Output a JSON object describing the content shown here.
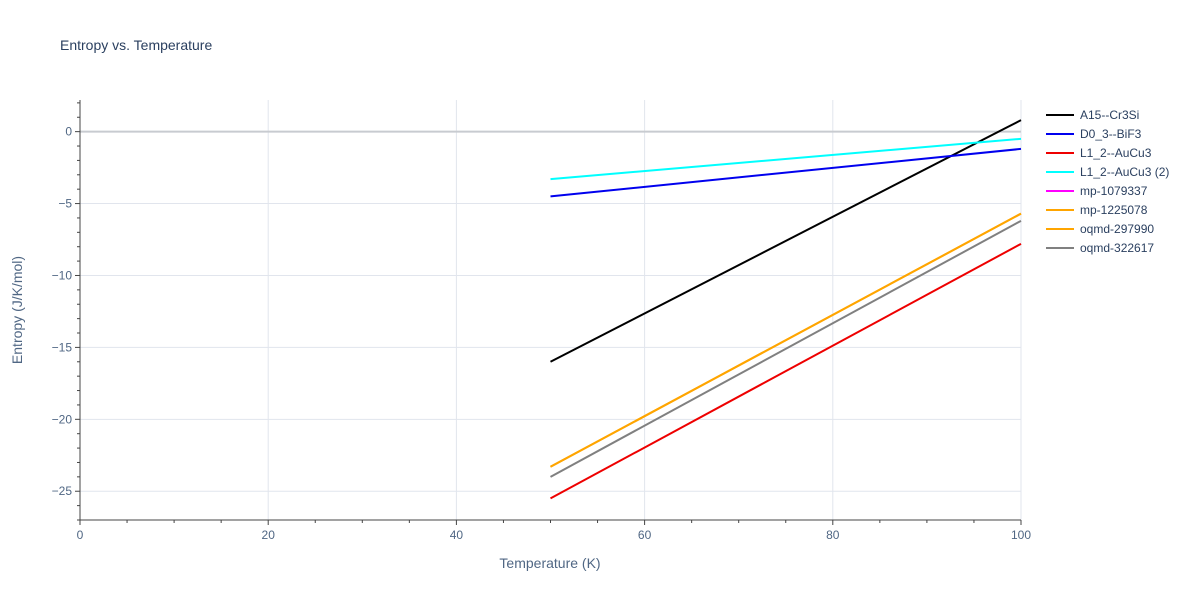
{
  "chart_data": {
    "type": "line",
    "title": "Entropy vs. Temperature",
    "xlabel": "Temperature (K)",
    "ylabel": "Entropy (J/K/mol)",
    "xlim": [
      0,
      100
    ],
    "ylim": [
      -27,
      2.2
    ],
    "xticks": [
      0,
      20,
      40,
      60,
      80,
      100
    ],
    "yticks": [
      0,
      -5,
      -10,
      -15,
      -20,
      -25
    ],
    "xtick_labels": [
      "0",
      "20",
      "40",
      "60",
      "80",
      "100"
    ],
    "ytick_labels": [
      "0",
      "−5",
      "−10",
      "−15",
      "−20",
      "−25"
    ],
    "grid": true,
    "legend_position": "right",
    "series": [
      {
        "name": "A15--Cr3Si",
        "color": "#000000",
        "x": [
          50,
          100
        ],
        "y": [
          -16.0,
          0.8
        ]
      },
      {
        "name": "D0_3--BiF3",
        "color": "#0000ee",
        "x": [
          50,
          100
        ],
        "y": [
          -4.5,
          -1.2
        ]
      },
      {
        "name": "L1_2--AuCu3",
        "color": "#ee0000",
        "x": [
          50,
          100
        ],
        "y": [
          -25.5,
          -7.8
        ]
      },
      {
        "name": "L1_2--AuCu3 (2)",
        "color": "#00ffff",
        "x": [
          50,
          100
        ],
        "y": [
          -3.3,
          -0.5
        ]
      },
      {
        "name": "mp-1079337",
        "color": "#ff00ff",
        "x": [],
        "y": []
      },
      {
        "name": "mp-1225078",
        "color": "#ffa500",
        "x": [
          50,
          100
        ],
        "y": [
          -23.3,
          -5.7
        ]
      },
      {
        "name": "oqmd-297990",
        "color": "#ffa500",
        "x": [
          50,
          100
        ],
        "y": [
          -23.3,
          -5.7
        ]
      },
      {
        "name": "oqmd-322617",
        "color": "#808080",
        "x": [
          50,
          100
        ],
        "y": [
          -24.0,
          -6.2
        ]
      }
    ]
  }
}
